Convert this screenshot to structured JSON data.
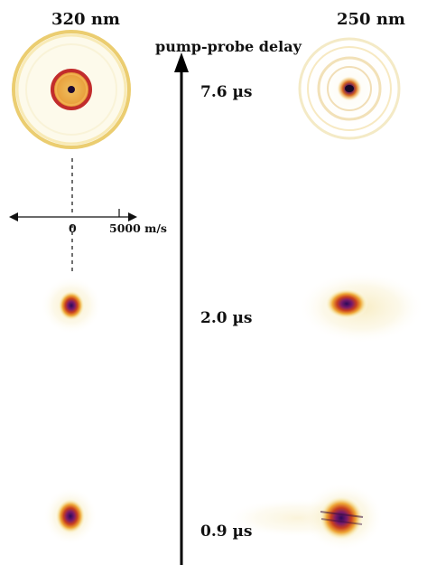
{
  "columns": {
    "left_wavelength": "320 nm",
    "right_wavelength": "250 nm"
  },
  "axis": {
    "title": "pump-probe delay"
  },
  "delays": [
    {
      "label": "7.6 µs"
    },
    {
      "label": "2.0 µs"
    },
    {
      "label": "0.9 µs"
    }
  ],
  "velocity_scale": {
    "zero_label": "0",
    "max_label": "5000 m/s"
  },
  "colors": {
    "image_outer": "#f4e9a0",
    "image_mid": "#e0a020",
    "image_inner": "#c0401a",
    "image_core": "#3a1060",
    "axis": "#000000"
  }
}
